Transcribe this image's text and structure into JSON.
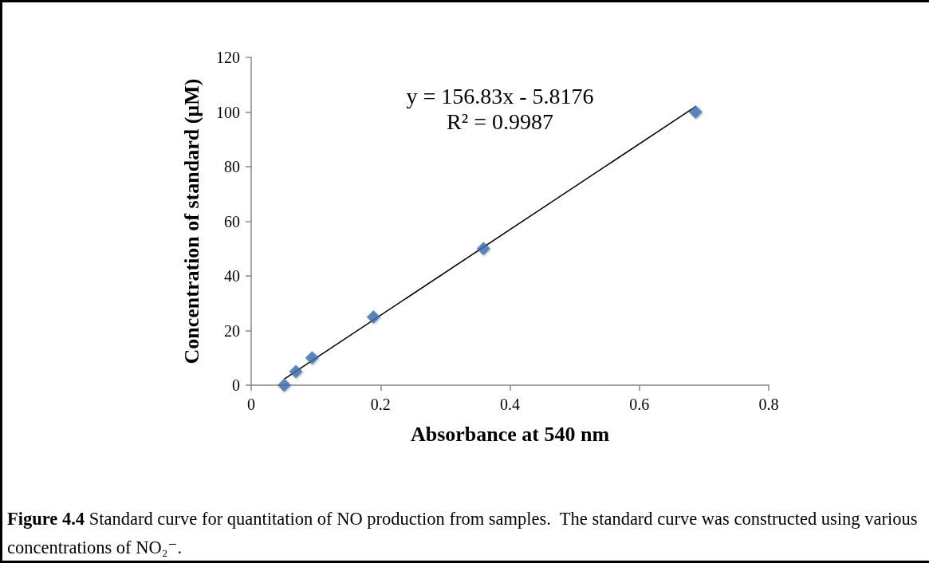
{
  "chart_data": {
    "type": "scatter",
    "xlabel": "Absorbance at 540 nm",
    "ylabel": "Concentration of standard (µM)",
    "x": [
      0.051,
      0.069,
      0.094,
      0.189,
      0.359,
      0.687
    ],
    "series": [
      {
        "color": "#3d6fb0",
        "marker": "diamond",
        "values": [
          0,
          5,
          10,
          25,
          50,
          100
        ]
      },
      {
        "type": "line",
        "color": "#000000",
        "line_style": "solid",
        "x": [
          0.051,
          0.687
        ],
        "values": [
          2.2,
          102
        ]
      }
    ],
    "grid": false,
    "xlim": [
      0,
      0.8
    ],
    "xticks": [
      0,
      0.2,
      0.4,
      0.6,
      0.8
    ],
    "ylim": [
      0,
      120
    ],
    "yticks": [
      0,
      20,
      40,
      60,
      80,
      100,
      120
    ],
    "annotations": [
      "y = 156.83x - 5.8176",
      "R² = 0.9987",
      "Figure 4.4",
      "Standard curve for quantitation of NO production from samples.  The standard curve was constructed using various concentrations of NO₂⁻."
    ]
  }
}
